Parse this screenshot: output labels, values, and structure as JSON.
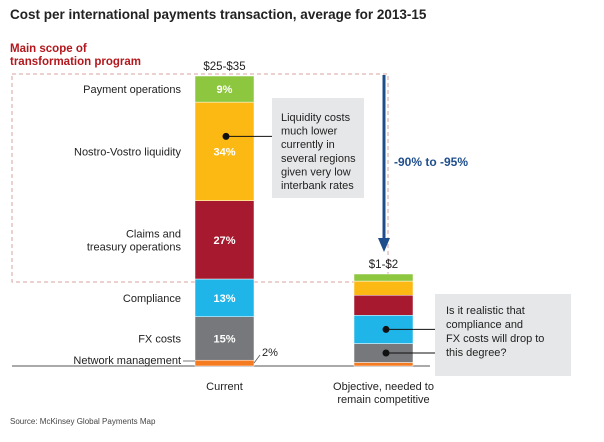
{
  "title": "Cost per international payments transaction, average for 2013-15",
  "scope_label": [
    "Main scope of",
    "transformation program"
  ],
  "source": "Source: McKinsey Global Payments Map",
  "colors": {
    "payment_operations": "#8dc63f",
    "nostro_vostro": "#fdb913",
    "claims": "#a6192e",
    "compliance": "#1fb5e8",
    "fx": "#77787b",
    "network": "#f47b20",
    "arrow": "#1f4e8c",
    "callout_bg": "#e6e7e8"
  },
  "chart_data": {
    "type": "bar",
    "stacked": true,
    "categories": [
      "Current",
      "Objective, needed to remain competitive"
    ],
    "category_labels": [
      [
        "Current"
      ],
      [
        "Objective, needed to",
        "remain competitive"
      ]
    ],
    "totals": [
      "$25-$35",
      "$1-$2"
    ],
    "unit": "% of cost",
    "series": [
      {
        "name": "Network management",
        "values": [
          2,
          3
        ],
        "label": "2%",
        "color_key": "network"
      },
      {
        "name": "FX costs",
        "values": [
          15,
          16
        ],
        "label": "15%",
        "color_key": "fx"
      },
      {
        "name": "Compliance",
        "values": [
          13,
          24
        ],
        "label": "13%",
        "color_key": "compliance"
      },
      {
        "name": "Claims and treasury operations",
        "label_lines": [
          "Claims and",
          "treasury operations"
        ],
        "values": [
          27,
          17
        ],
        "label": "27%",
        "color_key": "claims"
      },
      {
        "name": "Nostro-Vostro liquidity",
        "values": [
          34,
          12
        ],
        "label": "34%",
        "color_key": "nostro_vostro"
      },
      {
        "name": "Payment operations",
        "values": [
          9,
          6
        ],
        "label": "9%",
        "color_key": "payment_operations"
      }
    ],
    "reduction_label": "-90% to -95%",
    "callouts": [
      {
        "lines": [
          "Liquidity costs",
          "much lower",
          "currently in",
          "several regions",
          "given very low",
          "interbank rates"
        ]
      },
      {
        "lines": [
          "Is it realistic that",
          "compliance and",
          "FX costs will drop to",
          "this degree?"
        ]
      }
    ]
  }
}
